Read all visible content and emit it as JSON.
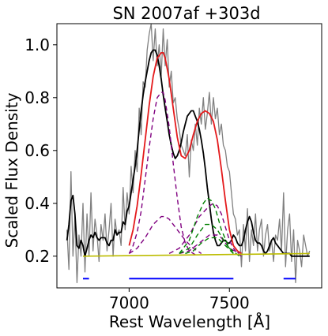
{
  "chart_data": {
    "type": "line",
    "title": "SN 2007af  +303d",
    "xlabel": "Rest Wavelength [Å]",
    "ylabel": "Scaled Flux Density",
    "xlim": [
      6640,
      7960
    ],
    "ylim": [
      0.08,
      1.08
    ],
    "x_ticks": [
      7000,
      7500
    ],
    "x_tick_labels": [
      "7000",
      "7500"
    ],
    "y_ticks": [
      0.2,
      0.4,
      0.6,
      0.8,
      1.0
    ],
    "y_tick_labels": [
      "0.2",
      "0.4",
      "0.6",
      "0.8",
      "1.0"
    ],
    "grid": false,
    "legend": "none",
    "colors": {
      "raw": "#808080",
      "smoothed": "#000000",
      "fit": "#e41a1c",
      "component_a": "#800080",
      "component_b": "#008000",
      "continuum": "#bcbc00",
      "ranges": "#0000ff"
    },
    "series": [
      {
        "key": "raw",
        "x": [
          6690,
          6700,
          6710,
          6720,
          6730,
          6740,
          6750,
          6760,
          6770,
          6780,
          6790,
          6800,
          6810,
          6820,
          6830,
          6840,
          6850,
          6860,
          6870,
          6880,
          6890,
          6900,
          6910,
          6920,
          6930,
          6940,
          6950,
          6960,
          6970,
          6980,
          6990,
          7000,
          7010,
          7020,
          7030,
          7040,
          7050,
          7060,
          7070,
          7080,
          7090,
          7100,
          7110,
          7120,
          7130,
          7140,
          7150,
          7160,
          7170,
          7180,
          7190,
          7200,
          7210,
          7220,
          7230,
          7240,
          7250,
          7260,
          7270,
          7280,
          7290,
          7300,
          7310,
          7320,
          7330,
          7340,
          7350,
          7360,
          7370,
          7380,
          7390,
          7400,
          7410,
          7420,
          7430,
          7440,
          7450,
          7460,
          7470,
          7480,
          7490,
          7500,
          7510,
          7520,
          7530,
          7540,
          7550,
          7560,
          7570,
          7580,
          7590,
          7600,
          7610,
          7620,
          7630,
          7640,
          7650,
          7660,
          7670,
          7680,
          7690,
          7700,
          7710,
          7720,
          7730,
          7740,
          7750,
          7760,
          7770,
          7780,
          7790,
          7800,
          7810,
          7820,
          7830,
          7840,
          7850,
          7860,
          7870,
          7880,
          7890,
          7900
        ],
        "y": [
          0.3,
          0.15,
          0.52,
          0.2,
          0.35,
          0.1,
          0.28,
          0.2,
          0.4,
          0.14,
          0.36,
          0.2,
          0.44,
          0.22,
          0.34,
          0.28,
          0.18,
          0.32,
          0.26,
          0.36,
          0.22,
          0.3,
          0.4,
          0.2,
          0.34,
          0.28,
          0.3,
          0.24,
          0.46,
          0.3,
          0.44,
          0.36,
          0.54,
          0.44,
          0.6,
          0.52,
          0.76,
          0.66,
          0.86,
          0.84,
          0.98,
          1.04,
          1.08,
          0.94,
          1.06,
          0.92,
          1.0,
          0.88,
          1.06,
          0.92,
          1.02,
          0.84,
          0.9,
          0.78,
          0.8,
          0.72,
          0.68,
          0.62,
          0.6,
          0.58,
          0.66,
          0.5,
          0.64,
          0.6,
          0.7,
          0.62,
          0.76,
          0.7,
          0.8,
          0.68,
          0.74,
          0.82,
          0.7,
          0.8,
          0.72,
          0.76,
          0.66,
          0.7,
          0.62,
          0.6,
          0.54,
          0.52,
          0.44,
          0.36,
          0.34,
          0.28,
          0.3,
          0.16,
          0.32,
          0.22,
          0.38,
          0.18,
          0.3,
          0.24,
          0.36,
          0.22,
          0.3,
          0.34,
          0.2,
          0.28,
          0.32,
          0.22,
          0.26,
          0.18,
          0.28,
          0.26,
          0.34,
          0.22,
          0.44,
          0.16,
          0.3,
          0.36,
          0.18,
          0.3,
          0.1,
          0.26,
          0.22,
          0.16,
          0.28,
          0.24,
          0.2,
          0.22
        ]
      },
      {
        "key": "smoothed",
        "x": [
          6690,
          6700,
          6710,
          6720,
          6730,
          6740,
          6750,
          6760,
          6770,
          6780,
          6790,
          6800,
          6810,
          6820,
          6830,
          6840,
          6850,
          6860,
          6870,
          6880,
          6890,
          6900,
          6910,
          6920,
          6930,
          6940,
          6950,
          6960,
          6970,
          6980,
          6990,
          7000,
          7010,
          7020,
          7030,
          7040,
          7050,
          7060,
          7070,
          7080,
          7090,
          7100,
          7110,
          7120,
          7130,
          7140,
          7150,
          7160,
          7170,
          7180,
          7190,
          7200,
          7210,
          7220,
          7230,
          7240,
          7250,
          7260,
          7270,
          7280,
          7290,
          7300,
          7310,
          7320,
          7330,
          7340,
          7350,
          7360,
          7370,
          7380,
          7390,
          7400,
          7410,
          7420,
          7430,
          7440,
          7450,
          7460,
          7470,
          7480,
          7490,
          7500,
          7510,
          7520,
          7530,
          7540,
          7550,
          7560,
          7570,
          7580,
          7590,
          7600,
          7610,
          7620,
          7630,
          7640,
          7650,
          7660,
          7670,
          7680,
          7690,
          7700,
          7710,
          7720,
          7730,
          7740,
          7750,
          7760,
          7770,
          7780,
          7790,
          7800,
          7810,
          7820,
          7830,
          7840,
          7850,
          7860,
          7870,
          7880,
          7890,
          7900
        ],
        "y": [
          0.26,
          0.32,
          0.41,
          0.43,
          0.36,
          0.24,
          0.23,
          0.26,
          0.24,
          0.2,
          0.23,
          0.26,
          0.28,
          0.27,
          0.29,
          0.27,
          0.26,
          0.27,
          0.27,
          0.27,
          0.25,
          0.24,
          0.26,
          0.26,
          0.3,
          0.28,
          0.29,
          0.29,
          0.33,
          0.32,
          0.37,
          0.39,
          0.44,
          0.49,
          0.54,
          0.6,
          0.68,
          0.75,
          0.81,
          0.86,
          0.9,
          0.94,
          0.97,
          0.98,
          0.98,
          0.96,
          0.92,
          0.87,
          0.81,
          0.76,
          0.71,
          0.66,
          0.62,
          0.59,
          0.57,
          0.58,
          0.6,
          0.63,
          0.67,
          0.7,
          0.73,
          0.74,
          0.75,
          0.75,
          0.73,
          0.71,
          0.68,
          0.64,
          0.59,
          0.53,
          0.46,
          0.4,
          0.34,
          0.29,
          0.26,
          0.24,
          0.24,
          0.25,
          0.26,
          0.26,
          0.25,
          0.25,
          0.26,
          0.28,
          0.27,
          0.25,
          0.24,
          0.24,
          0.26,
          0.3,
          0.33,
          0.35,
          0.33,
          0.29,
          0.26,
          0.25,
          0.25,
          0.24,
          0.22,
          0.21,
          0.22,
          0.24,
          0.26,
          0.27,
          0.25,
          0.24,
          0.23,
          0.22,
          0.21,
          0.21,
          0.21,
          0.21,
          0.2,
          0.2,
          0.2,
          0.2,
          0.2,
          0.2,
          0.2,
          0.2,
          0.2,
          0.2
        ]
      },
      {
        "key": "fit",
        "x": [
          7000,
          7020,
          7040,
          7060,
          7080,
          7100,
          7120,
          7140,
          7160,
          7170,
          7180,
          7200,
          7220,
          7240,
          7260,
          7280,
          7300,
          7320,
          7340,
          7360,
          7380,
          7400,
          7420,
          7440,
          7460,
          7480,
          7500,
          7520,
          7540,
          7560
        ],
        "y": [
          0.24,
          0.3,
          0.39,
          0.51,
          0.64,
          0.77,
          0.88,
          0.95,
          0.97,
          0.97,
          0.95,
          0.87,
          0.76,
          0.65,
          0.58,
          0.57,
          0.6,
          0.66,
          0.71,
          0.74,
          0.75,
          0.74,
          0.71,
          0.64,
          0.53,
          0.41,
          0.3,
          0.24,
          0.22,
          0.21
        ]
      },
      {
        "key": "component_a",
        "x": [
          7000,
          7020,
          7040,
          7060,
          7080,
          7100,
          7120,
          7140,
          7160,
          7170,
          7180,
          7200,
          7220,
          7240,
          7260,
          7280,
          7300,
          7320,
          7340
        ],
        "y": [
          0.21,
          0.24,
          0.29,
          0.37,
          0.49,
          0.61,
          0.72,
          0.8,
          0.82,
          0.82,
          0.79,
          0.69,
          0.55,
          0.42,
          0.31,
          0.25,
          0.22,
          0.21,
          0.2
        ]
      },
      {
        "key": "component_a",
        "x": [
          7000,
          7040,
          7080,
          7120,
          7160,
          7180,
          7200,
          7240,
          7280,
          7320,
          7360
        ],
        "y": [
          0.21,
          0.23,
          0.27,
          0.32,
          0.35,
          0.35,
          0.34,
          0.3,
          0.26,
          0.23,
          0.21
        ]
      },
      {
        "key": "component_a",
        "x": [
          7200,
          7250,
          7300,
          7350,
          7400,
          7420,
          7440,
          7460,
          7480,
          7500,
          7520,
          7540,
          7560
        ],
        "y": [
          0.21,
          0.23,
          0.28,
          0.35,
          0.39,
          0.4,
          0.39,
          0.36,
          0.31,
          0.26,
          0.23,
          0.21,
          0.2
        ]
      },
      {
        "key": "component_a",
        "x": [
          7250,
          7300,
          7350,
          7400,
          7420,
          7440,
          7460,
          7500,
          7550
        ],
        "y": [
          0.21,
          0.22,
          0.25,
          0.28,
          0.28,
          0.28,
          0.27,
          0.23,
          0.21
        ]
      },
      {
        "key": "component_b",
        "x": [
          7250,
          7300,
          7340,
          7370,
          7390,
          7410,
          7430,
          7460,
          7500,
          7550
        ],
        "y": [
          0.21,
          0.26,
          0.35,
          0.4,
          0.42,
          0.41,
          0.38,
          0.3,
          0.23,
          0.2
        ]
      },
      {
        "key": "component_b",
        "x": [
          7250,
          7300,
          7340,
          7380,
          7410,
          7440,
          7480,
          7520
        ],
        "y": [
          0.21,
          0.23,
          0.28,
          0.32,
          0.32,
          0.3,
          0.25,
          0.21
        ]
      },
      {
        "key": "component_b",
        "x": [
          7280,
          7320,
          7360,
          7400,
          7440,
          7480,
          7520
        ],
        "y": [
          0.21,
          0.22,
          0.25,
          0.27,
          0.27,
          0.24,
          0.21
        ]
      },
      {
        "key": "continuum",
        "x": [
          6770,
          7900
        ],
        "y": [
          0.2,
          0.21
        ]
      }
    ],
    "ranges": [
      {
        "x": [
          6770,
          6800
        ],
        "y": 0.115
      },
      {
        "x": [
          7000,
          7520
        ],
        "y": 0.115
      },
      {
        "x": [
          7770,
          7830
        ],
        "y": 0.115
      }
    ]
  }
}
